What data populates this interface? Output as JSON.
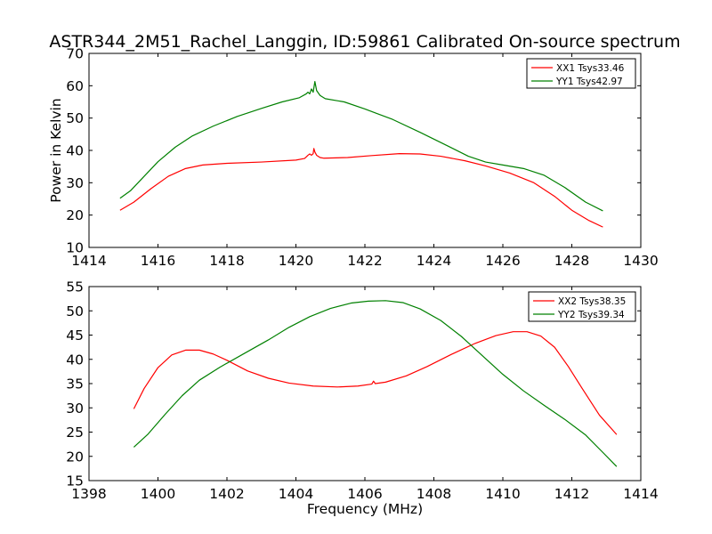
{
  "chart_data": [
    {
      "type": "line",
      "title": "ASTR344_2M51_Rachel_Langgin, ID:59861 Calibrated On-source spectrum",
      "xlabel": "",
      "ylabel": "Power in Kelvin",
      "xlim": [
        1414,
        1430
      ],
      "ylim": [
        10,
        70
      ],
      "xticks": [
        "1414",
        "1416",
        "1418",
        "1420",
        "1422",
        "1424",
        "1426",
        "1428",
        "1430"
      ],
      "yticks": [
        "10",
        "20",
        "30",
        "40",
        "50",
        "60",
        "70"
      ],
      "legend_position": "upper-right",
      "series": [
        {
          "name": "XX1 Tsys33.46",
          "color": "#ff0000",
          "points": [
            [
              1414.9,
              21.5
            ],
            [
              1415.3,
              24.0
            ],
            [
              1415.8,
              28.2
            ],
            [
              1416.3,
              32.0
            ],
            [
              1416.8,
              34.4
            ],
            [
              1417.3,
              35.5
            ],
            [
              1418.0,
              36.0
            ],
            [
              1419.0,
              36.4
            ],
            [
              1420.0,
              37.0
            ],
            [
              1420.25,
              37.5
            ],
            [
              1420.3,
              38.0
            ],
            [
              1420.35,
              38.5
            ],
            [
              1420.4,
              38.9
            ],
            [
              1420.45,
              38.5
            ],
            [
              1420.5,
              39.0
            ],
            [
              1420.52,
              40.6
            ],
            [
              1420.55,
              39.5
            ],
            [
              1420.6,
              38.5
            ],
            [
              1420.7,
              37.8
            ],
            [
              1420.8,
              37.6
            ],
            [
              1421.5,
              37.8
            ],
            [
              1422.2,
              38.4
            ],
            [
              1423.0,
              39.0
            ],
            [
              1423.6,
              38.9
            ],
            [
              1424.2,
              38.2
            ],
            [
              1424.9,
              36.8
            ],
            [
              1425.5,
              35.2
            ],
            [
              1426.2,
              33.0
            ],
            [
              1426.9,
              30.0
            ],
            [
              1427.5,
              25.8
            ],
            [
              1428.0,
              21.5
            ],
            [
              1428.5,
              18.3
            ],
            [
              1428.9,
              16.3
            ]
          ]
        },
        {
          "name": "YY1 Tsys42.97",
          "color": "#008000",
          "points": [
            [
              1414.9,
              25.2
            ],
            [
              1415.2,
              27.5
            ],
            [
              1415.6,
              32.0
            ],
            [
              1416.0,
              36.5
            ],
            [
              1416.5,
              41.0
            ],
            [
              1417.0,
              44.5
            ],
            [
              1417.6,
              47.5
            ],
            [
              1418.3,
              50.5
            ],
            [
              1419.0,
              53.0
            ],
            [
              1419.6,
              55.0
            ],
            [
              1420.1,
              56.3
            ],
            [
              1420.3,
              57.5
            ],
            [
              1420.35,
              58.0
            ],
            [
              1420.4,
              57.5
            ],
            [
              1420.45,
              59.0
            ],
            [
              1420.5,
              58.0
            ],
            [
              1420.55,
              61.3
            ],
            [
              1420.6,
              58.5
            ],
            [
              1420.7,
              57.0
            ],
            [
              1420.85,
              56.0
            ],
            [
              1421.4,
              55.0
            ],
            [
              1422.0,
              52.8
            ],
            [
              1422.8,
              49.6
            ],
            [
              1423.6,
              45.6
            ],
            [
              1424.4,
              41.4
            ],
            [
              1425.0,
              38.2
            ],
            [
              1425.5,
              36.4
            ],
            [
              1426.0,
              35.5
            ],
            [
              1426.6,
              34.4
            ],
            [
              1427.2,
              32.3
            ],
            [
              1427.8,
              28.5
            ],
            [
              1428.4,
              24.0
            ],
            [
              1428.9,
              21.3
            ]
          ]
        }
      ]
    },
    {
      "type": "line",
      "title": "",
      "xlabel": "Frequency (MHz)",
      "ylabel": "",
      "xlim": [
        1398,
        1414
      ],
      "ylim": [
        15,
        55
      ],
      "xticks": [
        "1398",
        "1400",
        "1402",
        "1404",
        "1406",
        "1408",
        "1410",
        "1412",
        "1414"
      ],
      "yticks": [
        "15",
        "20",
        "25",
        "30",
        "35",
        "40",
        "45",
        "50",
        "55"
      ],
      "legend_position": "upper-right",
      "series": [
        {
          "name": "XX2 Tsys38.35",
          "color": "#ff0000",
          "points": [
            [
              1399.3,
              29.8
            ],
            [
              1399.6,
              34.0
            ],
            [
              1400.0,
              38.3
            ],
            [
              1400.4,
              40.9
            ],
            [
              1400.8,
              41.9
            ],
            [
              1401.2,
              41.9
            ],
            [
              1401.6,
              41.1
            ],
            [
              1402.0,
              39.8
            ],
            [
              1402.6,
              37.6
            ],
            [
              1403.2,
              36.1
            ],
            [
              1403.8,
              35.1
            ],
            [
              1404.5,
              34.5
            ],
            [
              1405.2,
              34.3
            ],
            [
              1405.8,
              34.5
            ],
            [
              1406.2,
              34.9
            ],
            [
              1406.25,
              35.5
            ],
            [
              1406.3,
              35.0
            ],
            [
              1406.6,
              35.3
            ],
            [
              1407.2,
              36.6
            ],
            [
              1407.8,
              38.5
            ],
            [
              1408.5,
              41.0
            ],
            [
              1409.2,
              43.3
            ],
            [
              1409.8,
              44.9
            ],
            [
              1410.3,
              45.7
            ],
            [
              1410.7,
              45.7
            ],
            [
              1411.1,
              44.8
            ],
            [
              1411.5,
              42.5
            ],
            [
              1411.9,
              38.5
            ],
            [
              1412.3,
              34.0
            ],
            [
              1412.8,
              28.5
            ],
            [
              1413.3,
              24.5
            ]
          ]
        },
        {
          "name": "YY2 Tsys39.34",
          "color": "#008000",
          "points": [
            [
              1399.3,
              21.9
            ],
            [
              1399.7,
              24.5
            ],
            [
              1400.2,
              28.6
            ],
            [
              1400.7,
              32.5
            ],
            [
              1401.2,
              35.7
            ],
            [
              1401.8,
              38.4
            ],
            [
              1402.5,
              41.2
            ],
            [
              1403.2,
              44.0
            ],
            [
              1403.8,
              46.6
            ],
            [
              1404.4,
              48.8
            ],
            [
              1405.0,
              50.5
            ],
            [
              1405.6,
              51.6
            ],
            [
              1406.1,
              52.0
            ],
            [
              1406.6,
              52.1
            ],
            [
              1407.1,
              51.7
            ],
            [
              1407.6,
              50.4
            ],
            [
              1408.2,
              48.0
            ],
            [
              1408.8,
              44.7
            ],
            [
              1409.4,
              40.8
            ],
            [
              1410.0,
              36.9
            ],
            [
              1410.6,
              33.5
            ],
            [
              1411.2,
              30.5
            ],
            [
              1411.8,
              27.6
            ],
            [
              1412.4,
              24.4
            ],
            [
              1412.9,
              20.8
            ],
            [
              1413.3,
              17.9
            ]
          ]
        }
      ]
    }
  ]
}
